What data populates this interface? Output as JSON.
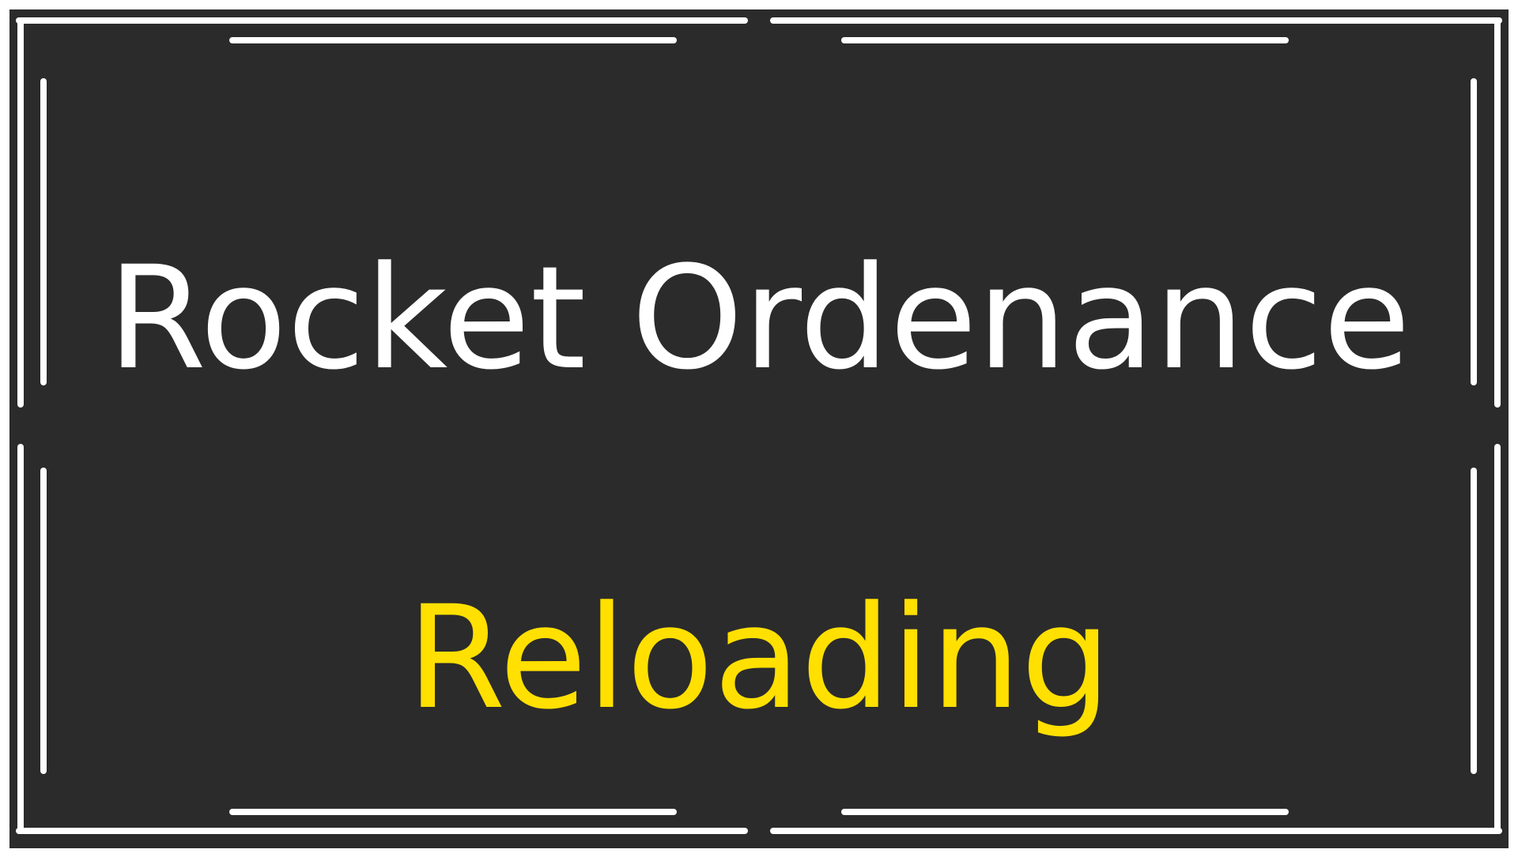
{
  "hud": {
    "weapon_name": "Rocket Ordenance",
    "status": "Reloading"
  },
  "colors": {
    "background": "#2b2b2b",
    "frame": "#ffffff",
    "weapon_name_color": "#ffffff",
    "status_color": "#ffe000"
  }
}
